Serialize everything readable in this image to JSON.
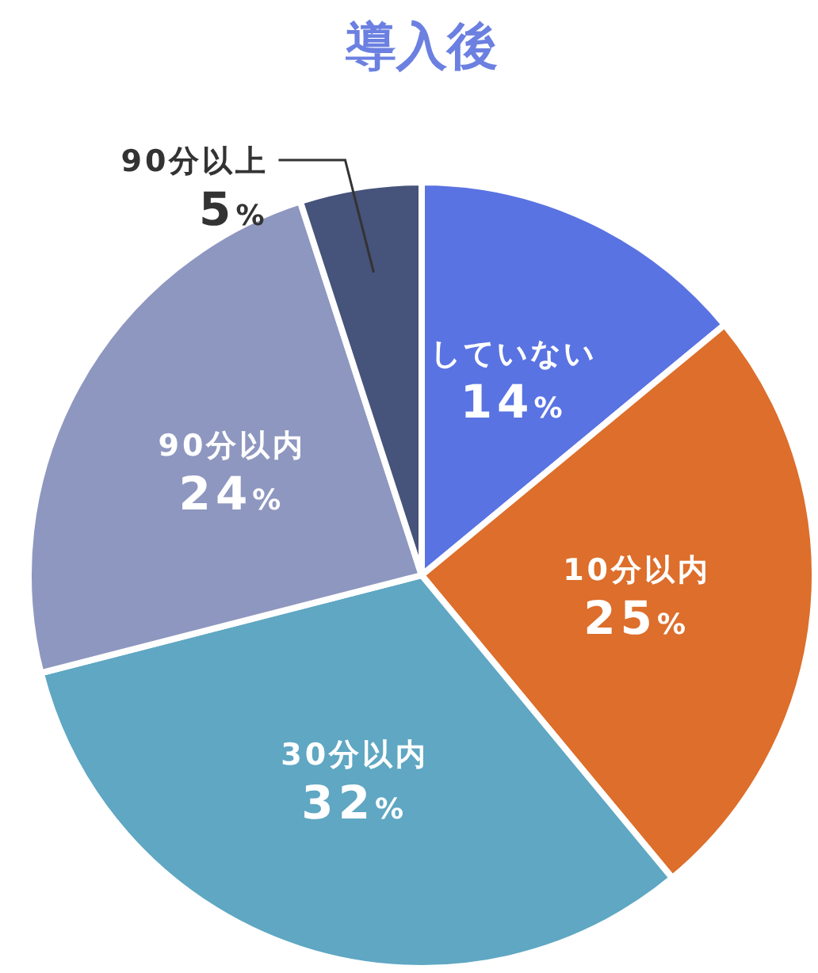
{
  "chart_data": {
    "type": "pie",
    "title": "導入後",
    "categories": [
      "していない",
      "10分以内",
      "30分以内",
      "90分以内",
      "90分以上"
    ],
    "values": [
      14,
      25,
      32,
      24,
      5
    ],
    "value_labels": [
      "14%",
      "25%",
      "32%",
      "24%",
      "5%"
    ],
    "colors": [
      "#5a73e2",
      "#dd6e2b",
      "#5fa7c3",
      "#8e97bf",
      "#46537a"
    ]
  }
}
